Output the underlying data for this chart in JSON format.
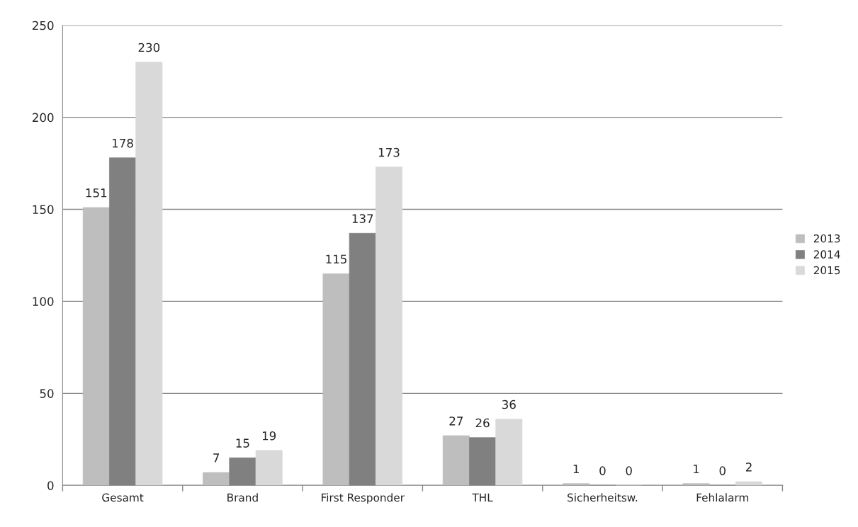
{
  "chart_data": {
    "type": "bar",
    "categories": [
      "Gesamt",
      "Brand",
      "First Responder",
      "THL",
      "Sicherheitsw.",
      "Fehlalarm"
    ],
    "series": [
      {
        "name": "2013",
        "color": "#bebebe",
        "values": [
          151,
          7,
          115,
          27,
          1,
          1
        ]
      },
      {
        "name": "2014",
        "color": "#808080",
        "values": [
          178,
          15,
          137,
          26,
          0,
          0
        ]
      },
      {
        "name": "2015",
        "color": "#d9d9d9",
        "values": [
          230,
          19,
          173,
          36,
          0,
          2
        ]
      }
    ],
    "ylim": [
      0,
      250
    ],
    "yticks": [
      0,
      50,
      100,
      150,
      200,
      250
    ],
    "grid": "y",
    "legend": "right",
    "data_labels": true
  }
}
